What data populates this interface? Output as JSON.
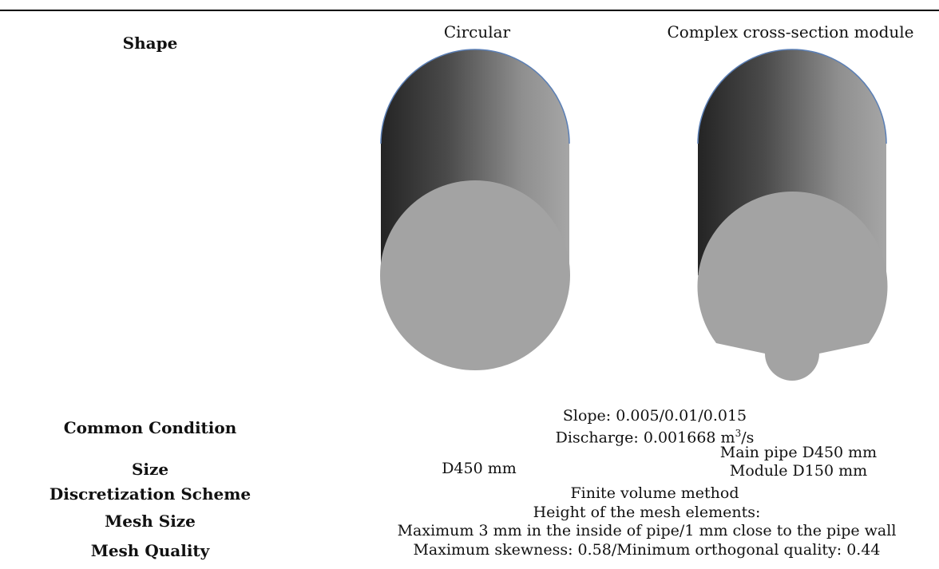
{
  "table": {
    "header": {
      "label": "Shape",
      "col1": "Circular",
      "col2": "Complex cross-section module"
    },
    "rows": [
      {
        "label": "Common Condition",
        "line1": "Slope: 0.005/0.01/0.015",
        "line2_prefix": "Discharge: 0.001668 m",
        "line2_sup": "3",
        "line2_suffix": "/s"
      },
      {
        "label": "Size",
        "col1": "D450 mm",
        "col2_line1": "Main pipe D450 mm",
        "col2_line2": "Module D150 mm"
      },
      {
        "label": "Discretization Scheme",
        "value": "Finite volume method"
      },
      {
        "label": "Mesh Size",
        "line1": "Height of the mesh elements:",
        "line2": "Maximum 3 mm in the inside of pipe/1 mm close to the pipe wall"
      },
      {
        "label": "Mesh Quality",
        "value": "Maximum skewness: 0.58/Minimum orthogonal quality: 0.44"
      }
    ]
  },
  "colors": {
    "face": "#a3a3a3",
    "body_dark": "#262626",
    "body_light": "#a8a8a8",
    "edge": "#5b7fb5"
  }
}
